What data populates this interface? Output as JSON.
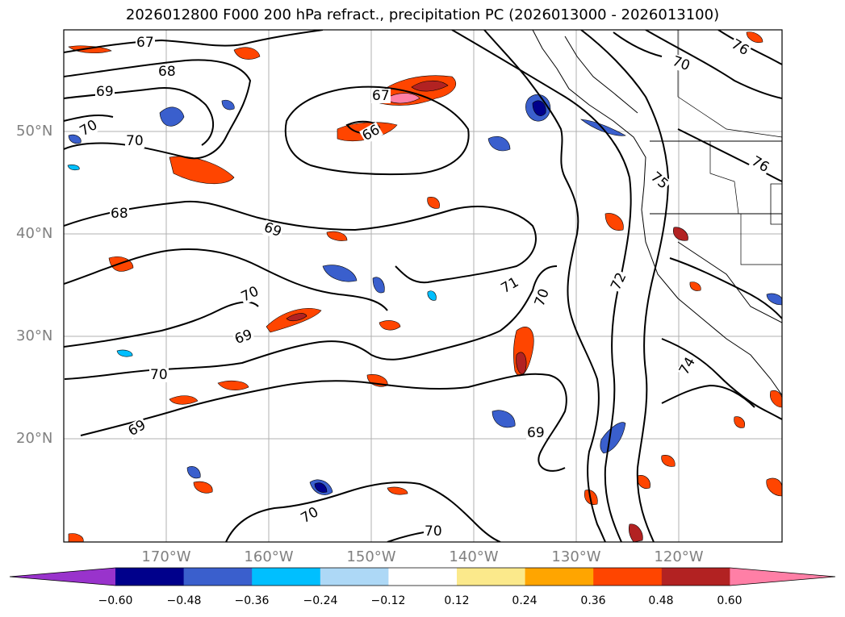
{
  "title": "2026012800 F000 200 hPa refract., precipitation PC (2026013000 - 2026013100)",
  "map": {
    "lat_labels": [
      "50°N",
      "40°N",
      "30°N",
      "20°N"
    ],
    "lon_labels": [
      "170°W",
      "160°W",
      "150°W",
      "140°W",
      "130°W",
      "120°W"
    ],
    "contour_labels": [
      "67",
      "68",
      "69",
      "70",
      "70",
      "68",
      "69",
      "67",
      "66",
      "70",
      "69",
      "70",
      "69",
      "70",
      "70",
      "69",
      "70",
      "71",
      "72",
      "74",
      "75",
      "76",
      "76",
      "70"
    ]
  },
  "colorbar": {
    "colors": [
      "#9933cc",
      "#00008b",
      "#3a5fcd",
      "#00bfff",
      "#add8f6",
      "#ffffff",
      "#fbe98b",
      "#ffa500",
      "#ff4500",
      "#b22222",
      "#ff7fa6"
    ],
    "labels": [
      "−0.60",
      "−0.48",
      "−0.36",
      "−0.24",
      "−0.12",
      "0.12",
      "0.24",
      "0.36",
      "0.48",
      "0.60"
    ]
  }
}
